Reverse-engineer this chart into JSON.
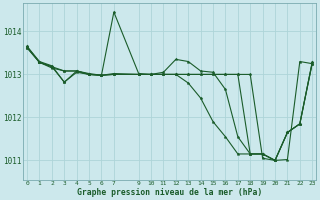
{
  "background_color": "#cce8ec",
  "grid_color": "#aed4d8",
  "line_color": "#1a5c2a",
  "y_ticks": [
    1011,
    1012,
    1013,
    1014
  ],
  "x_ticks": [
    0,
    1,
    2,
    3,
    4,
    5,
    6,
    7,
    9,
    10,
    11,
    12,
    13,
    14,
    15,
    16,
    17,
    18,
    19,
    20,
    21,
    22,
    23
  ],
  "ylim": [
    1010.55,
    1014.65
  ],
  "xlim": [
    -0.3,
    23.3
  ],
  "xlabel": "Graphe pression niveau de la mer (hPa)",
  "series": [
    {
      "x": [
        0,
        1,
        2,
        3,
        4,
        5,
        6,
        7,
        9,
        10,
        11,
        12,
        13,
        14,
        15,
        16,
        17,
        18,
        19,
        20,
        21,
        22,
        23
      ],
      "y": [
        1013.65,
        1013.3,
        1013.2,
        1012.82,
        1013.08,
        1013.02,
        1012.98,
        1014.45,
        1013.02,
        1013.0,
        1013.05,
        1013.35,
        1013.3,
        1013.08,
        1013.05,
        1012.65,
        1011.55,
        1011.15,
        1011.15,
        1011.0,
        1011.02,
        1013.3,
        1013.25
      ]
    },
    {
      "x": [
        0,
        1,
        2,
        3,
        4,
        5,
        6,
        7,
        9,
        10,
        11,
        12,
        13,
        14,
        15,
        16,
        17,
        18,
        19,
        20,
        21,
        22,
        23
      ],
      "y": [
        1013.65,
        1013.28,
        1013.18,
        1012.82,
        1013.05,
        1013.0,
        1012.98,
        1013.02,
        1013.0,
        1013.0,
        1013.0,
        1013.0,
        1012.8,
        1012.45,
        1011.9,
        1011.55,
        1011.15,
        1011.15,
        1011.15,
        1011.0,
        1011.65,
        1011.85,
        1013.25
      ]
    },
    {
      "x": [
        0,
        1,
        2,
        3,
        4,
        5,
        6,
        7,
        9,
        10,
        11,
        12,
        13,
        14,
        15,
        16,
        17,
        18,
        19,
        20,
        21,
        22,
        23
      ],
      "y": [
        1013.62,
        1013.28,
        1013.18,
        1013.08,
        1013.08,
        1013.0,
        1012.98,
        1013.0,
        1013.0,
        1013.0,
        1013.0,
        1013.0,
        1013.0,
        1013.0,
        1013.0,
        1013.0,
        1013.0,
        1011.15,
        1011.15,
        1011.0,
        1011.65,
        1011.85,
        1013.28
      ]
    },
    {
      "x": [
        0,
        1,
        2,
        3,
        4,
        5,
        6,
        7,
        9,
        10,
        11,
        12,
        13,
        14,
        15,
        16,
        17,
        18,
        19,
        20,
        21,
        22,
        23
      ],
      "y": [
        1013.62,
        1013.28,
        1013.15,
        1013.08,
        1013.08,
        1013.0,
        1012.98,
        1013.0,
        1013.0,
        1013.0,
        1013.0,
        1013.0,
        1013.0,
        1013.0,
        1013.0,
        1013.0,
        1013.0,
        1013.0,
        1011.05,
        1011.0,
        1011.65,
        1011.85,
        1013.28
      ]
    }
  ]
}
